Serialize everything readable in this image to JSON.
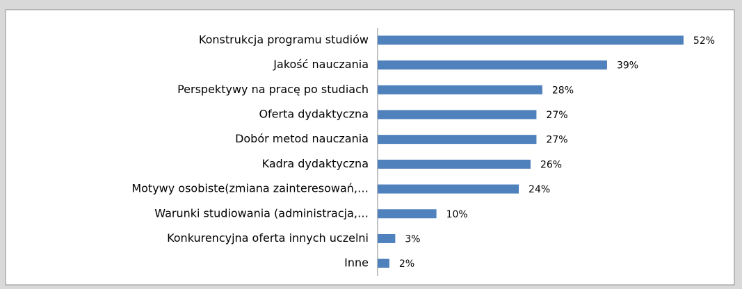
{
  "chart_data": {
    "type": "bar",
    "orientation": "horizontal",
    "categories": [
      "Konstrukcja programu studiów",
      "Jakość nauczania",
      "Perspektywy na pracę po studiach",
      "Oferta dydaktyczna",
      "Dobór metod nauczania",
      "Kadra dydaktyczna",
      "Motywy osobiste(zmiana zainteresowań,…",
      "Warunki studiowania (administracja,…",
      "Konkurencyjna oferta innych uczelni",
      "Inne"
    ],
    "values": [
      52,
      39,
      28,
      27,
      27,
      26,
      24,
      10,
      3,
      2
    ],
    "value_labels": [
      "52%",
      "39%",
      "28%",
      "27%",
      "27%",
      "26%",
      "24%",
      "10%",
      "3%",
      "2%"
    ],
    "color": "#4f81bd"
  }
}
